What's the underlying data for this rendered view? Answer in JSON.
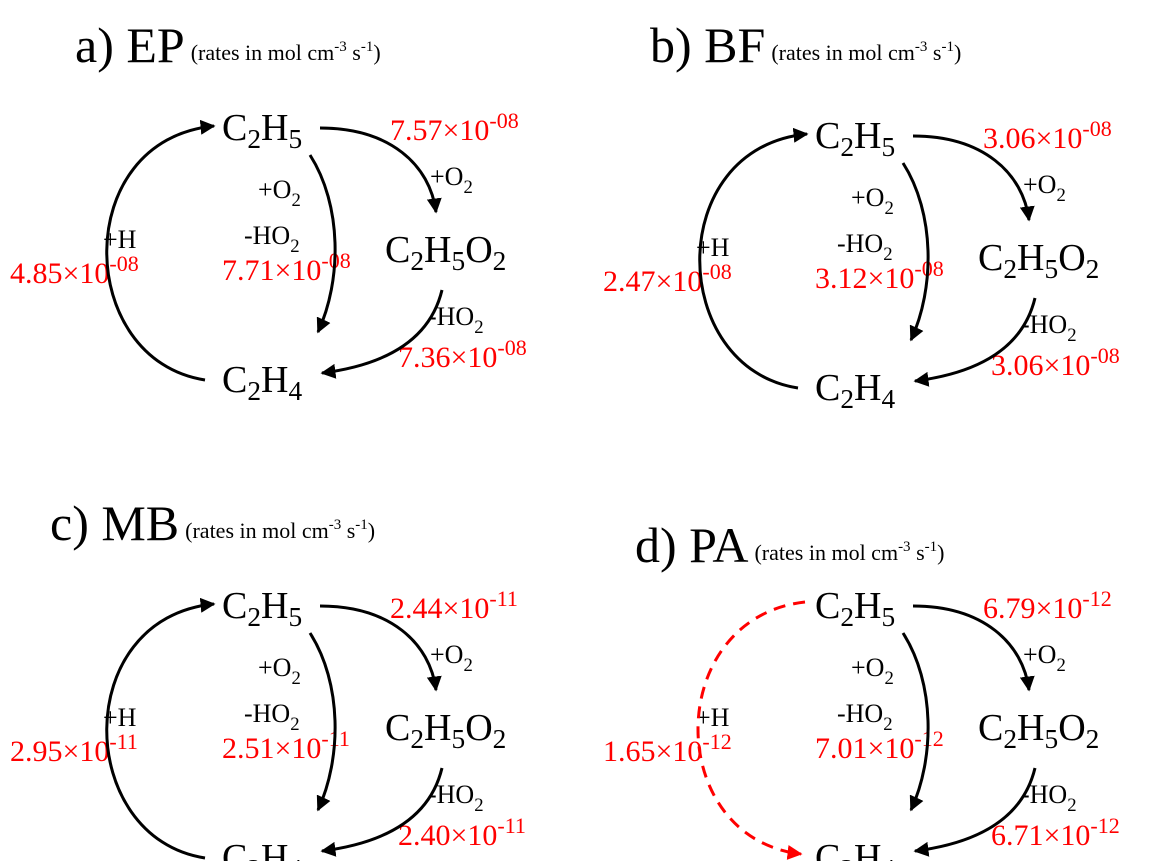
{
  "species": {
    "c2h5": "C2H5",
    "c2h5o2": "C2H5O2",
    "c2h4": "C2H4"
  },
  "reactions": {
    "add_o2": "+O2",
    "elim_ho2": "-HO2",
    "add_h": "+H"
  },
  "units": [
    {
      "text": "(rates in mol cm"
    },
    {
      "sup": "-3"
    },
    {
      "text": " s"
    },
    {
      "sup": "-1"
    },
    {
      "text": ")"
    }
  ],
  "panels": [
    {
      "title": "a) EP",
      "rates": {
        "c2h5_to_c2h5o2": {
          "base": "7.57×10",
          "exp": "-08"
        },
        "c2h5_to_c2h4": {
          "base": "7.71×10",
          "exp": "-08"
        },
        "c2h5o2_to_c2h4": {
          "base": "7.36×10",
          "exp": "-08"
        },
        "c2h4_c2h5": {
          "base": "4.85×10",
          "exp": "-08"
        }
      }
    },
    {
      "title": "b) BF",
      "rates": {
        "c2h5_to_c2h5o2": {
          "base": "3.06×10",
          "exp": "-08"
        },
        "c2h5_to_c2h4": {
          "base": "3.12×10",
          "exp": "-08"
        },
        "c2h5o2_to_c2h4": {
          "base": "3.06×10",
          "exp": "-08"
        },
        "c2h4_c2h5": {
          "base": "2.47×10",
          "exp": "-08"
        }
      }
    },
    {
      "title": "c) MB",
      "rates": {
        "c2h5_to_c2h5o2": {
          "base": "2.44×10",
          "exp": "-11"
        },
        "c2h5_to_c2h4": {
          "base": "2.51×10",
          "exp": "-11"
        },
        "c2h5o2_to_c2h4": {
          "base": "2.40×10",
          "exp": "-11"
        },
        "c2h4_c2h5": {
          "base": "2.95×10",
          "exp": "-11"
        }
      }
    },
    {
      "title": "d) PA",
      "rates": {
        "c2h5_to_c2h5o2": {
          "base": "6.79×10",
          "exp": "-12"
        },
        "c2h5_to_c2h4": {
          "base": "7.01×10",
          "exp": "-12"
        },
        "c2h5o2_to_c2h4": {
          "base": "6.71×10",
          "exp": "-12"
        },
        "c2h4_c2h5": {
          "base": "1.65×10",
          "exp": "-12"
        }
      }
    }
  ]
}
